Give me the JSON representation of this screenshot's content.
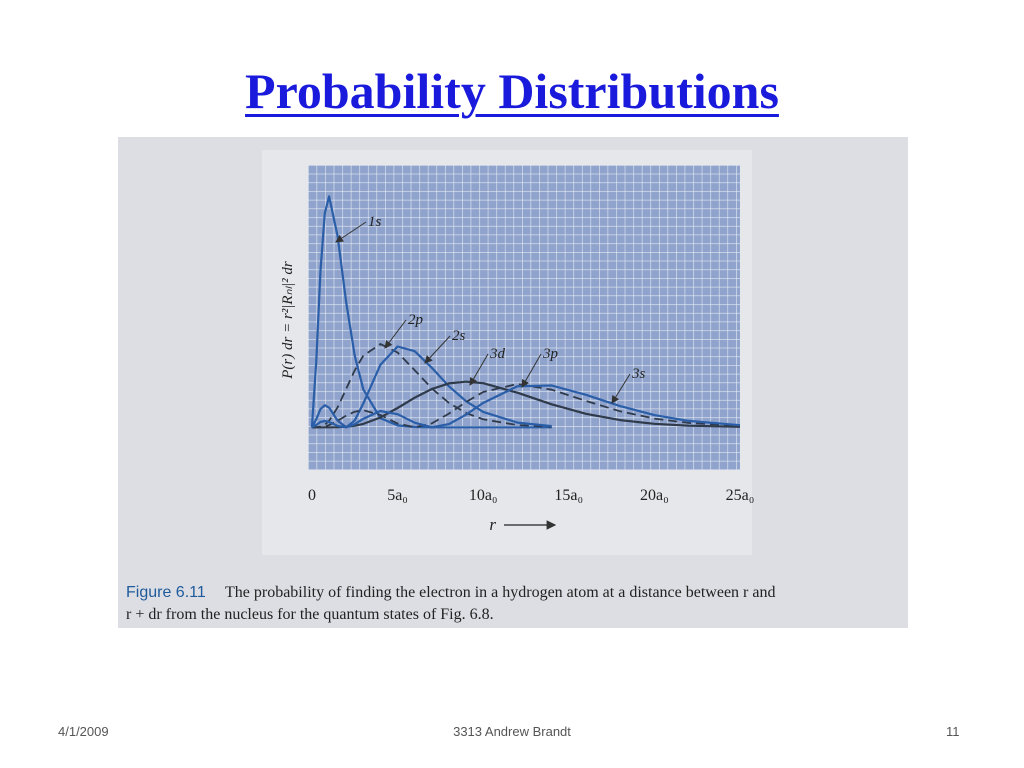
{
  "slide": {
    "title": "Probability Distributions",
    "footer_date": "4/1/2009",
    "footer_center": "3313  Andrew Brandt",
    "page_number": "11"
  },
  "figure": {
    "caption_label": "Figure 6.11",
    "caption_text": "The probability of finding the electron in a hydrogen atom at a distance between r and",
    "caption_text_2": "r + dr from the nucleus for the quantum states of Fig. 6.8."
  },
  "chart_data": {
    "type": "line",
    "x_label": "r",
    "y_label": "P(r) dr = r²|Rₙₗ|² dr",
    "x": [
      0,
      0.25,
      0.5,
      0.75,
      1,
      1.5,
      2,
      2.5,
      3,
      4,
      5,
      6,
      7,
      8,
      9,
      10,
      12,
      14,
      16,
      18,
      20,
      22,
      25
    ],
    "xlim": [
      -0.23,
      25
    ],
    "ylim": [
      -0.1,
      0.615
    ],
    "xticks": [
      0,
      {
        "value": 5,
        "label": "5a₀"
      },
      {
        "value": 10,
        "label": "10a₀"
      },
      {
        "value": 15,
        "label": "15a₀"
      },
      {
        "value": 20,
        "label": "20a₀"
      },
      {
        "value": 25,
        "label": "25a₀"
      }
    ],
    "series": [
      {
        "name": "1s",
        "color": "#2a5ea8",
        "dashed": false,
        "values": [
          0,
          0.1516,
          0.3679,
          0.502,
          0.5413,
          0.448,
          0.293,
          0.1685,
          0.0892,
          0.0215,
          0.0045,
          0.0009,
          0.0002,
          0,
          0,
          0,
          0,
          0,
          null,
          null,
          null,
          null,
          null
        ]
      },
      {
        "name": "2p",
        "color": "#2f3a4a",
        "dashed": true,
        "values": [
          0,
          0.000127,
          0.00158,
          0.00623,
          0.01533,
          0.0471,
          0.0902,
          0.1336,
          0.168,
          0.1954,
          0.1755,
          0.1339,
          0.0912,
          0.0572,
          0.0337,
          0.0189,
          0.0053,
          0.0013,
          null,
          null,
          null,
          null,
          null
        ]
      },
      {
        "name": "2s",
        "color": "#2a5ea8",
        "dashed": false,
        "values": [
          0,
          0.01864,
          0.04265,
          0.0519,
          0.046,
          0.01569,
          0,
          0.016,
          0.056,
          0.1466,
          0.1895,
          0.1785,
          0.1397,
          0.0965,
          0.0612,
          0.0363,
          0.0111,
          0.0029,
          null,
          null,
          null,
          null,
          null
        ]
      },
      {
        "name": "3d",
        "color": "#2f3a4a",
        "dashed": false,
        "values": [
          0,
          0,
          0,
          0,
          4e-05,
          0.00034,
          0.00137,
          0.00375,
          0.008,
          0.0231,
          0.0453,
          0.0695,
          0.0899,
          0.1029,
          0.1071,
          0.1035,
          0.0813,
          0.0541,
          0.0318,
          0.017,
          0.0084,
          0.0039,
          0.0012
        ]
      },
      {
        "name": "3p",
        "color": "#2f3a4a",
        "dashed": true,
        "values": [
          0,
          4e-05,
          0.00055,
          0.00215,
          0.00522,
          0.01533,
          0.02743,
          0.0367,
          0.0401,
          0.0289,
          0.0091,
          0,
          0.0092,
          0.0322,
          0.0595,
          0.0828,
          0.1016,
          0.0883,
          0.0621,
          0.0377,
          0.0206,
          0.0104,
          0.0033
        ]
      },
      {
        "name": "3s",
        "color": "#2a5ea8",
        "dashed": false,
        "values": [
          0,
          0.0055,
          0.01246,
          0.01483,
          0.01263,
          0.0034,
          0.0002,
          0.00726,
          0.02,
          0.0382,
          0.0307,
          0.0109,
          0.0001,
          0.0076,
          0.0297,
          0.0572,
          0.0961,
          0.0982,
          0.0764,
          0.0498,
          0.0287,
          0.015,
          0.005
        ]
      }
    ]
  }
}
